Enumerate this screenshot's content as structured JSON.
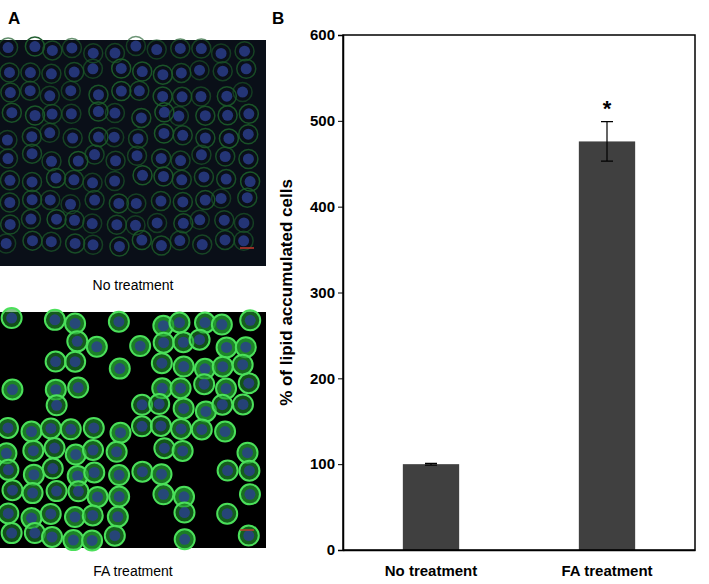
{
  "figure": {
    "panel_labels": [
      "A",
      "B"
    ],
    "image_captions": [
      "No treatment",
      "FA treatment"
    ]
  },
  "chart_data": {
    "type": "bar",
    "y_label": "% of lipid accumulated cells",
    "categories": [
      "No treatment",
      "FA treatment"
    ],
    "values": [
      100,
      476
    ],
    "errors": [
      1,
      23
    ],
    "color": "#404040",
    "ylim": [
      0,
      600
    ],
    "yticks": [
      0,
      100,
      200,
      300,
      400,
      500,
      600
    ],
    "grid": false,
    "annotations": [
      {
        "text": "*",
        "category": "FA treatment"
      }
    ]
  }
}
